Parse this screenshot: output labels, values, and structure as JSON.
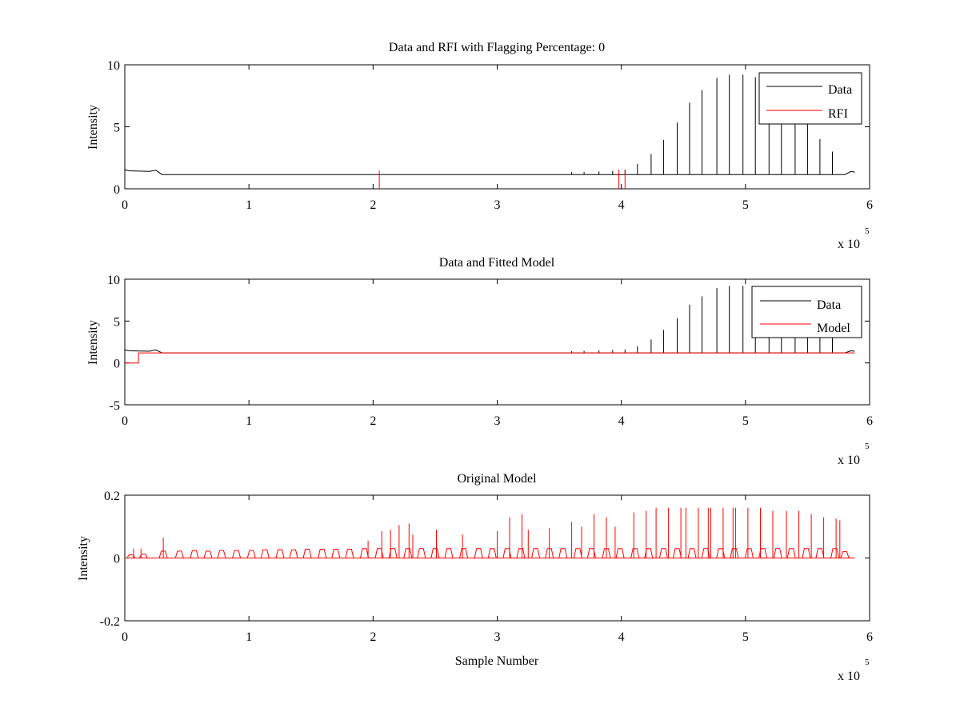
{
  "chart_data": [
    {
      "type": "line",
      "title": "Data and RFI with Flagging Percentage: 0",
      "xlabel": "",
      "ylabel": "Intensity",
      "xlim": [
        0,
        6
      ],
      "ylim": [
        0,
        10
      ],
      "x_ticks": [
        0,
        1,
        2,
        3,
        4,
        5,
        6
      ],
      "y_ticks": [
        0,
        5,
        10
      ],
      "x_exponent": {
        "base": "x 10",
        "power": "5"
      },
      "legend_placement": "top-right",
      "grid": false,
      "series": [
        {
          "name": "Data",
          "color": "#000000",
          "baseline": [
            [
              0.0,
              1.55
            ],
            [
              0.03,
              1.45
            ],
            [
              0.2,
              1.4
            ],
            [
              0.25,
              1.5
            ],
            [
              0.3,
              1.15
            ],
            [
              4.0,
              1.15
            ],
            [
              5.8,
              1.15
            ],
            [
              5.85,
              1.4
            ],
            [
              5.88,
              1.35
            ]
          ],
          "spikes": [
            [
              3.6,
              1.35
            ],
            [
              3.7,
              1.35
            ],
            [
              3.82,
              1.4
            ],
            [
              3.93,
              1.45
            ],
            [
              4.03,
              1.55
            ],
            [
              4.13,
              2.0
            ],
            [
              4.24,
              2.8
            ],
            [
              4.34,
              3.95
            ],
            [
              4.45,
              5.35
            ],
            [
              4.55,
              6.95
            ],
            [
              4.65,
              7.95
            ],
            [
              4.77,
              8.95
            ],
            [
              4.87,
              9.2
            ],
            [
              4.98,
              9.2
            ],
            [
              5.08,
              9.0
            ],
            [
              5.19,
              8.5
            ],
            [
              5.29,
              7.5
            ],
            [
              5.4,
              6.5
            ],
            [
              5.5,
              5.2
            ],
            [
              5.6,
              4.0
            ],
            [
              5.7,
              3.0
            ]
          ]
        },
        {
          "name": "RFI",
          "color": "#ff0000",
          "spikes": [
            [
              2.05,
              1.45
            ],
            [
              3.98,
              1.55
            ],
            [
              4.03,
              1.55
            ]
          ]
        }
      ]
    },
    {
      "type": "line",
      "title": "Data and Fitted Model",
      "xlabel": "",
      "ylabel": "Intensity",
      "xlim": [
        0,
        6
      ],
      "ylim": [
        -5,
        10
      ],
      "x_ticks": [
        0,
        1,
        2,
        3,
        4,
        5,
        6
      ],
      "y_ticks": [
        -5,
        0,
        5,
        10
      ],
      "x_exponent": {
        "base": "x 10",
        "power": "5"
      },
      "legend_placement": "top-right",
      "grid": false,
      "series": [
        {
          "name": "Data",
          "color": "#000000",
          "baseline": [
            [
              0.0,
              1.55
            ],
            [
              0.03,
              1.45
            ],
            [
              0.2,
              1.4
            ],
            [
              0.25,
              1.55
            ],
            [
              0.3,
              1.2
            ],
            [
              4.0,
              1.2
            ],
            [
              5.8,
              1.2
            ],
            [
              5.85,
              1.45
            ],
            [
              5.88,
              1.4
            ]
          ],
          "spikes": [
            [
              3.6,
              1.4
            ],
            [
              3.7,
              1.45
            ],
            [
              3.82,
              1.5
            ],
            [
              3.93,
              1.55
            ],
            [
              4.03,
              1.6
            ],
            [
              4.13,
              2.0
            ],
            [
              4.24,
              2.8
            ],
            [
              4.34,
              3.95
            ],
            [
              4.45,
              5.35
            ],
            [
              4.55,
              6.95
            ],
            [
              4.65,
              7.95
            ],
            [
              4.77,
              8.95
            ],
            [
              4.87,
              9.2
            ],
            [
              4.98,
              9.2
            ],
            [
              5.08,
              9.0
            ],
            [
              5.19,
              8.5
            ],
            [
              5.29,
              7.5
            ],
            [
              5.4,
              6.5
            ],
            [
              5.5,
              5.2
            ],
            [
              5.6,
              4.0
            ],
            [
              5.7,
              3.0
            ]
          ]
        },
        {
          "name": "Model",
          "color": "#ff0000",
          "baseline": [
            [
              0.0,
              0.0
            ],
            [
              0.11,
              0.0
            ],
            [
              0.11,
              1.2
            ],
            [
              5.88,
              1.2
            ]
          ],
          "spikes": []
        }
      ]
    },
    {
      "type": "line",
      "title": "Original Model",
      "xlabel": "Sample Number",
      "ylabel": "Intensity",
      "xlim": [
        0,
        6
      ],
      "ylim": [
        -0.2,
        0.2
      ],
      "x_ticks": [
        0,
        1,
        2,
        3,
        4,
        5,
        6
      ],
      "y_ticks": [
        -0.2,
        0,
        0.2
      ],
      "x_exponent": {
        "base": "x 10",
        "power": "5"
      },
      "legend_placement": "none",
      "grid": false,
      "series": [
        {
          "color": "#ff0000",
          "baseline": [
            [
              0.0,
              0.0
            ],
            [
              5.88,
              0.0
            ]
          ],
          "bumps": [
            [
              0.05,
              0.01
            ],
            [
              0.15,
              0.012
            ],
            [
              0.31,
              0.022
            ],
            [
              0.44,
              0.022
            ],
            [
              0.56,
              0.024
            ],
            [
              0.67,
              0.022
            ],
            [
              0.78,
              0.024
            ],
            [
              0.9,
              0.024
            ],
            [
              1.02,
              0.024
            ],
            [
              1.13,
              0.026
            ],
            [
              1.25,
              0.026
            ],
            [
              1.36,
              0.026
            ],
            [
              1.47,
              0.028
            ],
            [
              1.59,
              0.028
            ],
            [
              1.7,
              0.028
            ],
            [
              1.81,
              0.028
            ],
            [
              1.93,
              0.03
            ],
            [
              2.05,
              0.03
            ],
            [
              2.16,
              0.03
            ],
            [
              2.28,
              0.03
            ],
            [
              2.39,
              0.03
            ],
            [
              2.5,
              0.03
            ],
            [
              2.61,
              0.03
            ],
            [
              2.73,
              0.03
            ],
            [
              2.85,
              0.03
            ],
            [
              2.96,
              0.03
            ],
            [
              3.08,
              0.03
            ],
            [
              3.19,
              0.03
            ],
            [
              3.31,
              0.03
            ],
            [
              3.42,
              0.03
            ],
            [
              3.53,
              0.03
            ],
            [
              3.65,
              0.03
            ],
            [
              3.76,
              0.03
            ],
            [
              3.88,
              0.03
            ],
            [
              3.99,
              0.03
            ],
            [
              4.11,
              0.03
            ],
            [
              4.22,
              0.03
            ],
            [
              4.34,
              0.03
            ],
            [
              4.45,
              0.03
            ],
            [
              4.57,
              0.03
            ],
            [
              4.68,
              0.03
            ],
            [
              4.8,
              0.03
            ],
            [
              4.91,
              0.03
            ],
            [
              5.03,
              0.03
            ],
            [
              5.14,
              0.03
            ],
            [
              5.26,
              0.03
            ],
            [
              5.37,
              0.03
            ],
            [
              5.49,
              0.03
            ],
            [
              5.6,
              0.03
            ],
            [
              5.72,
              0.03
            ],
            [
              5.8,
              0.02
            ]
          ],
          "spikes": [
            [
              0.07,
              0.03
            ],
            [
              0.13,
              0.03
            ],
            [
              0.31,
              0.065
            ],
            [
              1.96,
              0.055
            ],
            [
              2.07,
              0.085
            ],
            [
              2.14,
              0.09
            ],
            [
              2.21,
              0.105
            ],
            [
              2.29,
              0.11
            ],
            [
              2.32,
              0.075
            ],
            [
              2.51,
              0.09
            ],
            [
              2.72,
              0.075
            ],
            [
              3.0,
              0.085
            ],
            [
              3.1,
              0.13
            ],
            [
              3.2,
              0.14
            ],
            [
              3.25,
              0.09
            ],
            [
              3.42,
              0.095
            ],
            [
              3.6,
              0.115
            ],
            [
              3.68,
              0.1
            ],
            [
              3.78,
              0.14
            ],
            [
              3.88,
              0.13
            ],
            [
              3.95,
              0.1
            ],
            [
              4.1,
              0.145
            ],
            [
              4.2,
              0.15
            ],
            [
              4.28,
              0.16
            ],
            [
              4.38,
              0.16
            ],
            [
              4.48,
              0.16
            ],
            [
              4.52,
              0.16
            ],
            [
              4.62,
              0.16
            ],
            [
              4.7,
              0.16
            ],
            [
              4.72,
              0.16
            ],
            [
              4.82,
              0.16
            ],
            [
              4.9,
              0.16
            ],
            [
              4.92,
              0.16
            ],
            [
              5.02,
              0.16
            ],
            [
              5.12,
              0.16
            ],
            [
              5.22,
              0.15
            ],
            [
              5.33,
              0.15
            ],
            [
              5.43,
              0.15
            ],
            [
              5.53,
              0.14
            ],
            [
              5.63,
              0.13
            ],
            [
              5.73,
              0.125
            ],
            [
              5.76,
              0.12
            ]
          ]
        }
      ]
    }
  ]
}
